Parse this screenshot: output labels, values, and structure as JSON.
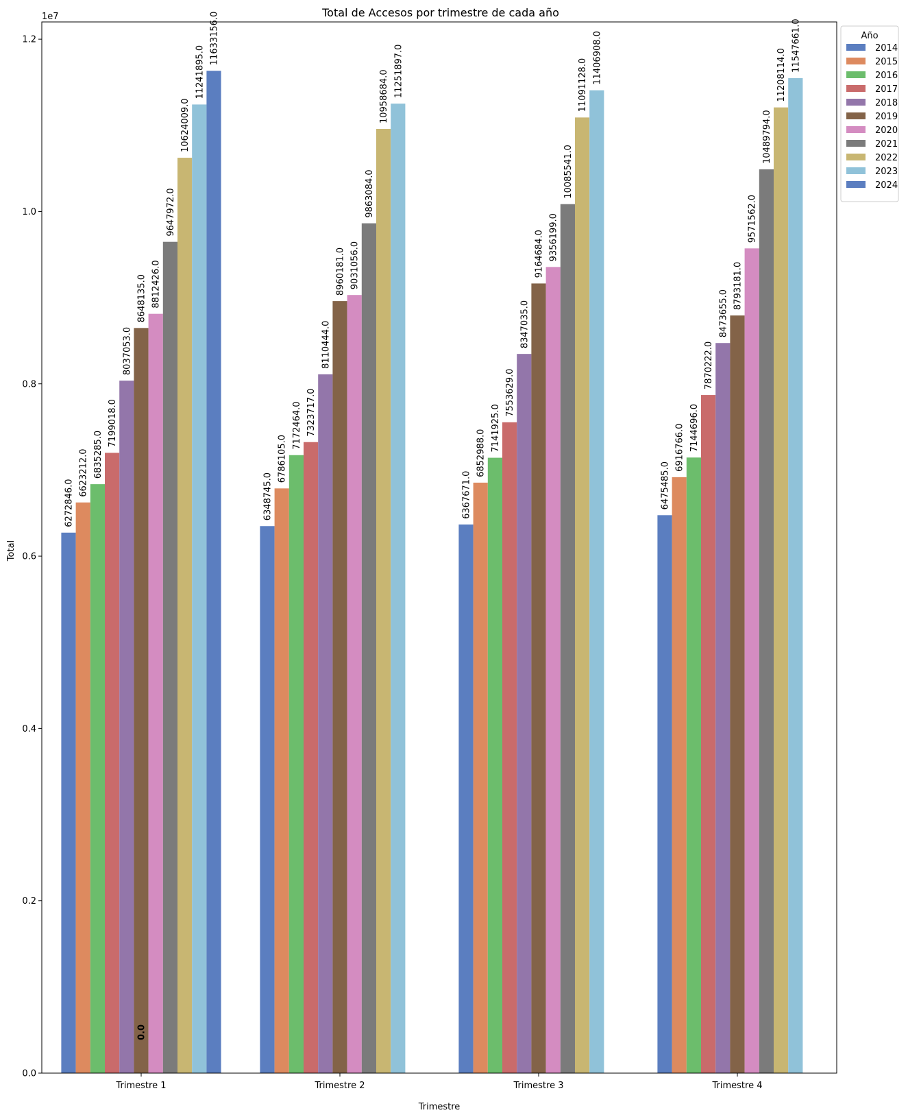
{
  "chart_data": {
    "type": "bar",
    "title": "Total de Accesos por trimestre de cada año",
    "xlabel": "Trimestre",
    "ylabel": "Total",
    "y_scale_label": "1e7",
    "ylim": [
      0,
      12200000
    ],
    "y_ticks": [
      0,
      2000000,
      4000000,
      6000000,
      8000000,
      10000000,
      12000000
    ],
    "y_tick_labels": [
      "0.0",
      "0.2",
      "0.4",
      "0.6",
      "0.8",
      "1.0",
      "1.2"
    ],
    "categories": [
      "Trimestre 1",
      "Trimestre 2",
      "Trimestre 3",
      "Trimestre 4"
    ],
    "legend": {
      "title": "Año",
      "position": "top-right"
    },
    "series": [
      {
        "name": "2014",
        "color": "#5b7ec0",
        "values": [
          6272846,
          6348745,
          6367671,
          6475485
        ],
        "labels": [
          "6272846.0",
          "6348745.0",
          "6367671.0",
          "6475485.0"
        ]
      },
      {
        "name": "2015",
        "color": "#dd8a5f",
        "values": [
          6623212,
          6786105,
          6852988,
          6916766
        ],
        "labels": [
          "6623212.0",
          "6786105.0",
          "6852988.0",
          "6916766.0"
        ]
      },
      {
        "name": "2016",
        "color": "#6cbd6c",
        "values": [
          6835285,
          7172464,
          7141925,
          7144696
        ],
        "labels": [
          "6835285.0",
          "7172464.0",
          "7141925.0",
          "7144696.0"
        ]
      },
      {
        "name": "2017",
        "color": "#c96b6b",
        "values": [
          7199018,
          7323717,
          7553629,
          7870222
        ],
        "labels": [
          "7199018.0",
          "7323717.0",
          "7553629.0",
          "7870222.0"
        ]
      },
      {
        "name": "2018",
        "color": "#9376aa",
        "values": [
          8037053,
          8110444,
          8347035,
          8473655
        ],
        "labels": [
          "8037053.0",
          "8110444.0",
          "8347035.0",
          "8473655.0"
        ]
      },
      {
        "name": "2019",
        "color": "#836348",
        "values": [
          8648135,
          8960181,
          9164684,
          8793181
        ],
        "labels": [
          "8648135.0",
          "8960181.0",
          "9164684.0",
          "8793181.0"
        ]
      },
      {
        "name": "2020",
        "color": "#d48cc1",
        "values": [
          8812426,
          9031056,
          9356199,
          9571562
        ],
        "labels": [
          "8812426.0",
          "9031056.0",
          "9356199.0",
          "9571562.0"
        ]
      },
      {
        "name": "2021",
        "color": "#7b7b7b",
        "values": [
          9647972,
          9863084,
          10085541,
          10489794
        ],
        "labels": [
          "9647972.0",
          "9863084.0",
          "10085541.0",
          "10489794.0"
        ]
      },
      {
        "name": "2022",
        "color": "#c8b672",
        "values": [
          10624009,
          10958684,
          11091128,
          11208114
        ],
        "labels": [
          "10624009.0",
          "10958684.0",
          "11091128.0",
          "11208114.0"
        ]
      },
      {
        "name": "2023",
        "color": "#90c2d9",
        "values": [
          11241895,
          11251897,
          11406908,
          11547661
        ],
        "labels": [
          "11241895.0",
          "11251897.0",
          "11406908.0",
          "11547661.0"
        ]
      },
      {
        "name": "2024",
        "color": "#5b7ec0",
        "values": [
          11633156,
          null,
          null,
          null
        ],
        "labels": [
          "11633156.0",
          null,
          null,
          null
        ]
      }
    ],
    "annotations": [
      {
        "text": "0.0",
        "category": "Trimestre 1",
        "series": "2019",
        "value": 0
      }
    ],
    "grid": false
  }
}
